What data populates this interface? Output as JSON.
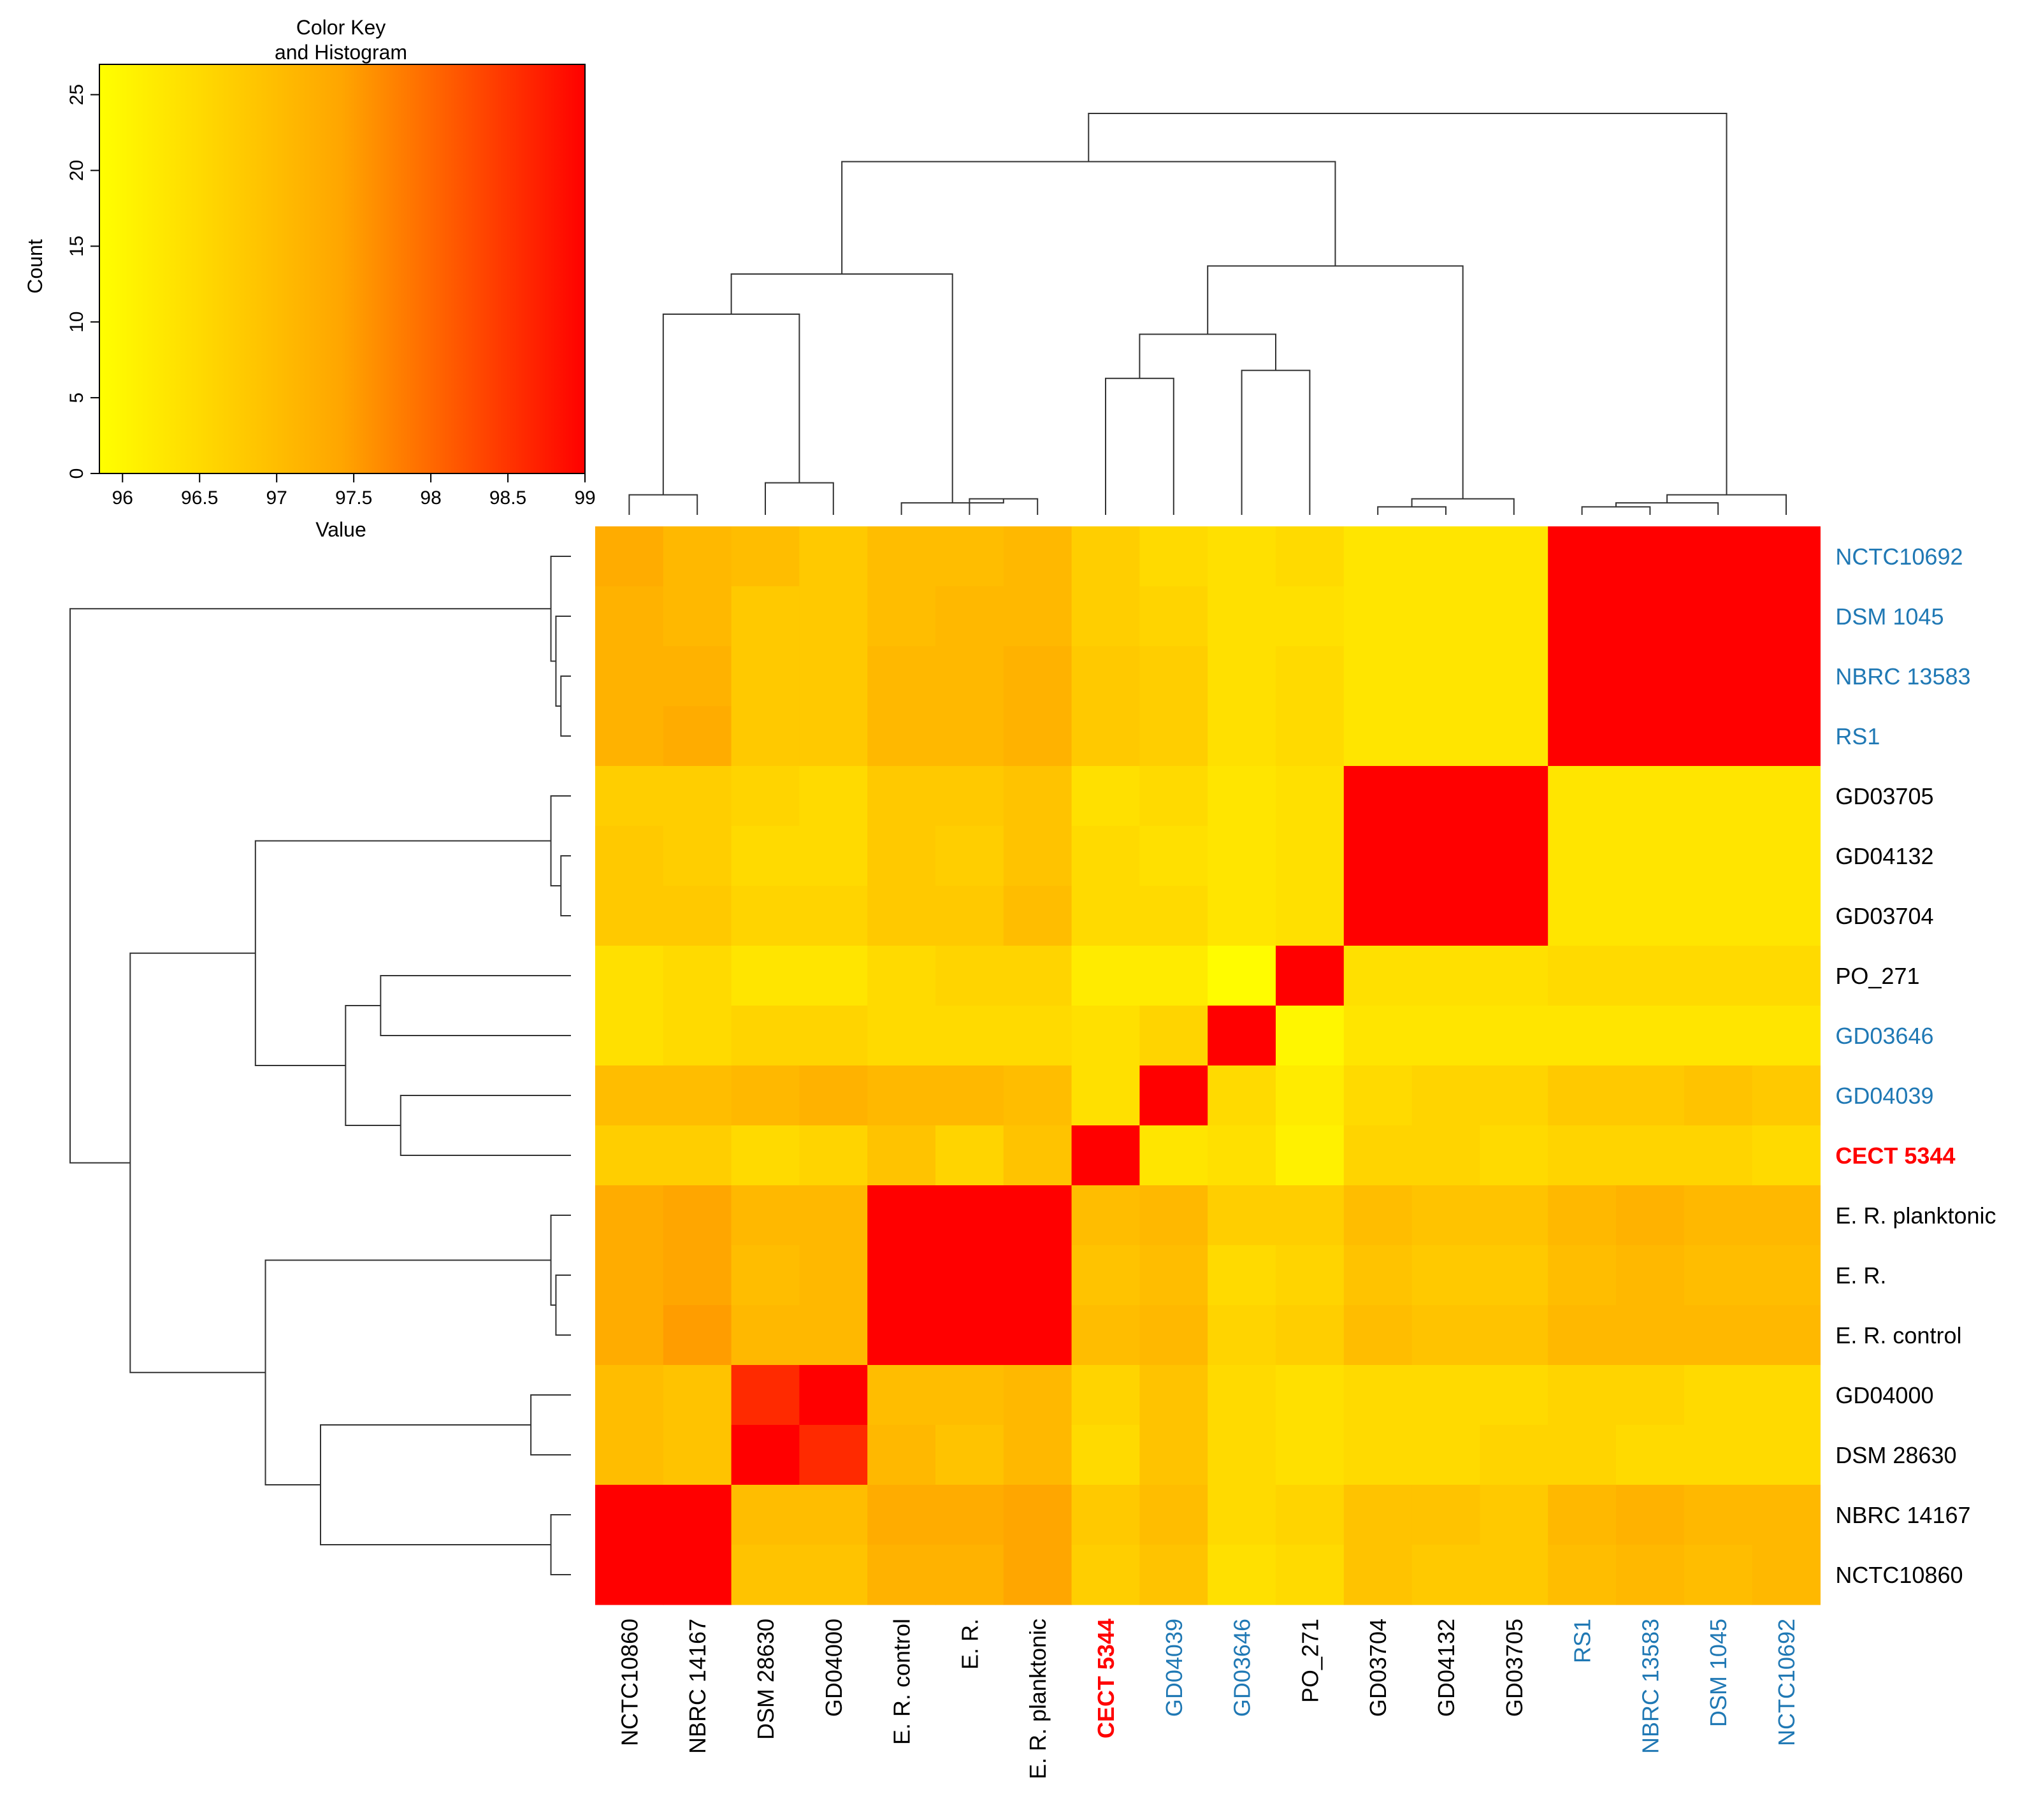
{
  "chart_data": {
    "type": "heatmap",
    "title": "",
    "colors": {
      "low": "#ffff00",
      "mid": "#ffa500",
      "high": "#ff0000",
      "label_default": "#000000",
      "label_blue": "#1f78b4",
      "label_red": "#ff0000"
    },
    "color_key": {
      "title_line1": "Color Key",
      "title_line2": "and Histogram",
      "xlabel": "Value",
      "ylabel": "Count",
      "x_ticks": [
        "96",
        "96.5",
        "97",
        "97.5",
        "98",
        "98.5",
        "99"
      ],
      "x_range": [
        95.85,
        99
      ],
      "y_ticks": [
        "0",
        "5",
        "10",
        "15",
        "20",
        "25"
      ],
      "y_range": [
        0,
        27
      ]
    },
    "columns": [
      "NCTC10860",
      "NBRC 14167",
      "DSM 28630",
      "GD04000",
      "E. R. control",
      "E. R.",
      "E. R. planktonic",
      "CECT 5344",
      "GD04039",
      "GD03646",
      "PO_271",
      "GD03704",
      "GD04132",
      "GD03705",
      "RS1",
      "NBRC 13583",
      "DSM 1045",
      "NCTC10692"
    ],
    "rows": [
      "NCTC10692",
      "DSM 1045",
      "NBRC 13583",
      "RS1",
      "GD03705",
      "GD04132",
      "GD03704",
      "PO_271",
      "GD03646",
      "GD04039",
      "CECT 5344",
      "E. R. planktonic",
      "E. R.",
      "E. R. control",
      "GD04000",
      "DSM 28630",
      "NBRC 14167",
      "NCTC10860"
    ],
    "label_styles": {
      "NCTC10692": "blue",
      "DSM 1045": "blue",
      "NBRC 13583": "blue",
      "RS1": "blue",
      "GD03646": "blue",
      "GD04039": "blue",
      "CECT 5344": "red"
    },
    "values": [
      [
        97.3,
        97.1,
        97.0,
        96.8,
        97.0,
        97.0,
        97.1,
        96.7,
        96.5,
        96.4,
        96.5,
        96.3,
        96.3,
        96.3,
        99.0,
        99.0,
        99.0,
        99.0
      ],
      [
        97.2,
        97.1,
        96.8,
        96.8,
        97.0,
        97.1,
        97.1,
        96.7,
        96.6,
        96.4,
        96.4,
        96.3,
        96.3,
        96.3,
        99.0,
        99.0,
        99.0,
        99.0
      ],
      [
        97.2,
        97.2,
        96.8,
        96.8,
        97.1,
        97.1,
        97.2,
        96.8,
        96.7,
        96.4,
        96.5,
        96.3,
        96.3,
        96.3,
        99.0,
        99.0,
        99.0,
        99.0
      ],
      [
        97.2,
        97.3,
        96.8,
        96.8,
        97.1,
        97.1,
        97.2,
        96.8,
        96.7,
        96.4,
        96.5,
        96.3,
        96.3,
        96.3,
        99.0,
        99.0,
        99.0,
        99.0
      ],
      [
        96.7,
        96.7,
        96.6,
        96.5,
        96.8,
        96.8,
        96.9,
        96.4,
        96.5,
        96.3,
        96.4,
        99.0,
        99.0,
        99.0,
        96.3,
        96.3,
        96.3,
        96.3
      ],
      [
        96.8,
        96.7,
        96.5,
        96.5,
        96.8,
        96.7,
        96.9,
        96.5,
        96.4,
        96.3,
        96.4,
        99.0,
        99.0,
        99.0,
        96.3,
        96.3,
        96.3,
        96.3
      ],
      [
        96.8,
        96.8,
        96.6,
        96.6,
        96.8,
        96.8,
        97.0,
        96.5,
        96.5,
        96.3,
        96.4,
        99.0,
        99.0,
        99.0,
        96.3,
        96.3,
        96.3,
        96.3
      ],
      [
        96.4,
        96.5,
        96.3,
        96.3,
        96.5,
        96.6,
        96.6,
        96.2,
        96.2,
        95.9,
        99.0,
        96.4,
        96.4,
        96.4,
        96.5,
        96.5,
        96.5,
        96.5
      ],
      [
        96.4,
        96.5,
        96.6,
        96.6,
        96.5,
        96.5,
        96.5,
        96.4,
        96.6,
        99.0,
        96.0,
        96.3,
        96.3,
        96.3,
        96.3,
        96.3,
        96.3,
        96.3
      ],
      [
        97.0,
        97.0,
        97.1,
        97.2,
        97.1,
        97.1,
        97.0,
        96.4,
        99.0,
        96.5,
        96.2,
        96.5,
        96.6,
        96.6,
        96.8,
        96.8,
        96.9,
        96.8
      ],
      [
        96.7,
        96.7,
        96.5,
        96.6,
        96.9,
        96.6,
        96.9,
        99.0,
        96.3,
        96.4,
        96.1,
        96.6,
        96.6,
        96.5,
        96.6,
        96.6,
        96.6,
        96.5
      ],
      [
        97.3,
        97.4,
        97.1,
        97.1,
        99.0,
        99.0,
        99.0,
        97.0,
        97.1,
        96.7,
        96.7,
        97.0,
        96.9,
        96.9,
        97.1,
        97.2,
        97.1,
        97.1
      ],
      [
        97.3,
        97.4,
        97.0,
        97.1,
        99.0,
        99.0,
        99.0,
        96.9,
        97.0,
        96.5,
        96.6,
        96.9,
        96.8,
        96.8,
        97.0,
        97.1,
        97.0,
        97.0
      ],
      [
        97.3,
        97.5,
        97.1,
        97.1,
        99.0,
        99.0,
        99.0,
        97.0,
        97.1,
        96.6,
        96.7,
        97.0,
        96.9,
        96.9,
        97.1,
        97.1,
        97.1,
        97.1
      ],
      [
        97.0,
        96.9,
        98.6,
        99.0,
        97.0,
        97.0,
        97.1,
        96.6,
        96.9,
        96.5,
        96.4,
        96.5,
        96.5,
        96.5,
        96.6,
        96.6,
        96.5,
        96.5
      ],
      [
        97.0,
        96.9,
        99.0,
        98.6,
        97.1,
        96.9,
        97.1,
        96.5,
        96.9,
        96.5,
        96.4,
        96.5,
        96.5,
        96.6,
        96.6,
        96.5,
        96.5,
        96.5
      ],
      [
        99.0,
        99.0,
        97.0,
        97.0,
        97.3,
        97.3,
        97.4,
        96.8,
        97.0,
        96.5,
        96.6,
        96.9,
        96.9,
        96.8,
        97.1,
        97.2,
        97.1,
        97.1
      ],
      [
        99.0,
        99.0,
        96.9,
        96.9,
        97.2,
        97.2,
        97.4,
        96.7,
        96.9,
        96.4,
        96.5,
        96.9,
        96.8,
        96.8,
        97.0,
        97.1,
        97.0,
        97.1
      ]
    ],
    "col_dendrogram": [
      {
        "a": 0,
        "b": 1,
        "h": 0.05
      },
      {
        "a": 2,
        "b": 3,
        "h": 0.08
      },
      {
        "a": 5,
        "b": 6,
        "h": 0.04
      },
      {
        "a": 4,
        "b": "n2",
        "h": 0.03
      },
      {
        "a": "n0",
        "b": "n1",
        "h": 0.5
      },
      {
        "a": "n4",
        "b": "n3",
        "h": 0.6
      },
      {
        "a": 7,
        "b": 8,
        "h": 0.34
      },
      {
        "a": 9,
        "b": 10,
        "h": 0.36
      },
      {
        "a": "n6",
        "b": "n7",
        "h": 0.45
      },
      {
        "a": 11,
        "b": 12,
        "h": 0.02
      },
      {
        "a": "n9",
        "b": 13,
        "h": 0.04
      },
      {
        "a": "n8",
        "b": "n10",
        "h": 0.62
      },
      {
        "a": "n5",
        "b": "n11",
        "h": 0.88
      },
      {
        "a": 14,
        "b": 15,
        "h": 0.02
      },
      {
        "a": "n13",
        "b": 16,
        "h": 0.03
      },
      {
        "a": "n14",
        "b": 17,
        "h": 0.05
      },
      {
        "a": "n12",
        "b": "n15",
        "h": 1.0
      }
    ],
    "row_dendrogram": [
      {
        "a": 2,
        "b": 3,
        "h": 0.02
      },
      {
        "a": 1,
        "b": "n0",
        "h": 0.03
      },
      {
        "a": 0,
        "b": "n1",
        "h": 0.04
      },
      {
        "a": 5,
        "b": 6,
        "h": 0.02
      },
      {
        "a": 4,
        "b": "n3",
        "h": 0.04
      },
      {
        "a": 7,
        "b": 8,
        "h": 0.38
      },
      {
        "a": 9,
        "b": 10,
        "h": 0.34
      },
      {
        "a": "n5",
        "b": "n6",
        "h": 0.45
      },
      {
        "a": "n4",
        "b": "n7",
        "h": 0.63
      },
      {
        "a": 12,
        "b": 13,
        "h": 0.03
      },
      {
        "a": 11,
        "b": "n9",
        "h": 0.04
      },
      {
        "a": 14,
        "b": 15,
        "h": 0.08
      },
      {
        "a": 16,
        "b": 17,
        "h": 0.04
      },
      {
        "a": "n11",
        "b": "n12",
        "h": 0.5
      },
      {
        "a": "n10",
        "b": "n13",
        "h": 0.61
      },
      {
        "a": "n8",
        "b": "n14",
        "h": 0.88
      },
      {
        "a": "n2",
        "b": "n15",
        "h": 1.0
      }
    ]
  }
}
